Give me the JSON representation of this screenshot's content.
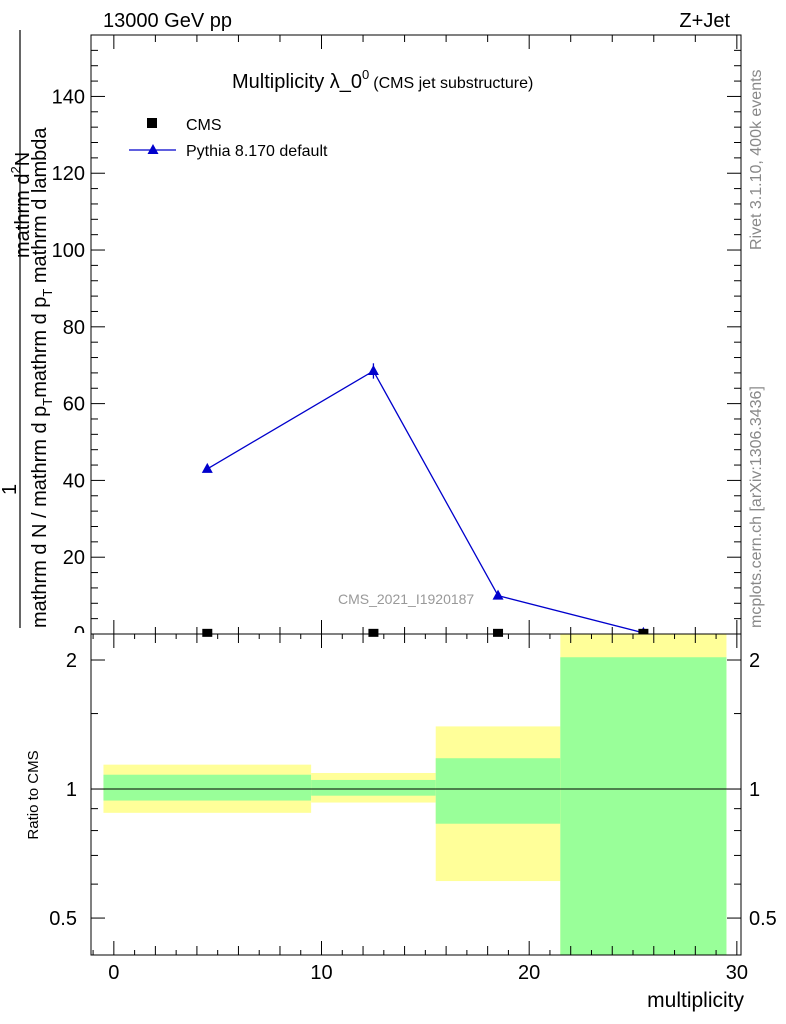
{
  "header": {
    "left": "13000 GeV pp",
    "right": "Z+Jet"
  },
  "side": {
    "rivet": "Rivet 3.1.10,  400k events",
    "mcplots": "mcplots.cern.ch [arXiv:1306.3436]"
  },
  "title": {
    "main": "Multiplicity λ_0",
    "sup": "0",
    "sub": "(CMS jet substructure)"
  },
  "analysis_tag": "CMS_2021_I1920187",
  "ylabel": {
    "numerator": "mathrm d",
    "numerator_sup": "2",
    "numerator_tail": "N",
    "denominator_main": "mathrm d N / mathrm d p",
    "denominator_sub": "T",
    "denominator_tail": "mathrm d p",
    "denominator_tail_sub": "T",
    "denominator_end": " mathrm d lambda",
    "one": "1",
    "lead": "mathrm d N / mathrm d p",
    "lead_sub": "T",
    "lead_tail": "mathrm d p",
    "lead_tail_sub": "T",
    "lead_end": "mathrm d lambda"
  },
  "legend": {
    "cms": "CMS",
    "pythia": "Pythia 8.170 default"
  },
  "ratio_ylabel": "Ratio to CMS",
  "xlabel": "multiplicity",
  "colors": {
    "pythia": "#0000cc",
    "band_inner": "#99ff99",
    "band_outer": "#ffff99"
  },
  "chart_data": [
    {
      "type": "line",
      "title": "Multiplicity λ_0^0 (CMS jet substructure)",
      "xlim": [
        -1.1,
        30.2
      ],
      "ylim": [
        0,
        156
      ],
      "yticks": [
        20,
        40,
        60,
        80,
        100,
        120,
        140
      ],
      "ytick_labels": [
        "20",
        "40",
        "60",
        "80",
        "100",
        "120",
        "140"
      ],
      "series": [
        {
          "name": "CMS",
          "marker": "square",
          "x": [
            4.5,
            12.5,
            18.5,
            25.5
          ],
          "y": [
            0.3,
            0.3,
            0.3,
            0.3
          ]
        },
        {
          "name": "Pythia 8.170 default",
          "marker": "triangle",
          "x": [
            4.5,
            12.5,
            18.5,
            25.5
          ],
          "y": [
            43,
            68.5,
            10,
            0.3
          ],
          "yerr": [
            0.6,
            2.0,
            0.5,
            0.1
          ]
        }
      ]
    },
    {
      "type": "area",
      "ylabel": "Ratio to CMS",
      "xlabel": "multiplicity",
      "xlim": [
        -1.1,
        30.2
      ],
      "ylim": [
        0.41,
        2.3
      ],
      "yscale": "log",
      "yticks": [
        0.5,
        1,
        2
      ],
      "ytick_labels": [
        "0.5",
        "1",
        "2"
      ],
      "xticks": [
        0,
        10,
        20,
        30
      ],
      "xtick_labels": [
        "0",
        "10",
        "20",
        "30"
      ],
      "reference_line": 1,
      "bins": [
        {
          "x0": -0.5,
          "x1": 9.5,
          "inner": [
            0.94,
            1.08
          ],
          "outer": [
            0.88,
            1.14
          ]
        },
        {
          "x0": 9.5,
          "x1": 15.5,
          "inner": [
            0.965,
            1.05
          ],
          "outer": [
            0.93,
            1.09
          ]
        },
        {
          "x0": 15.5,
          "x1": 21.5,
          "inner": [
            0.83,
            1.18
          ],
          "outer": [
            0.61,
            1.4
          ]
        },
        {
          "x0": 21.5,
          "x1": 29.5,
          "inner": [
            0.41,
            2.03
          ],
          "outer": [
            0.41,
            2.3
          ]
        }
      ]
    }
  ]
}
